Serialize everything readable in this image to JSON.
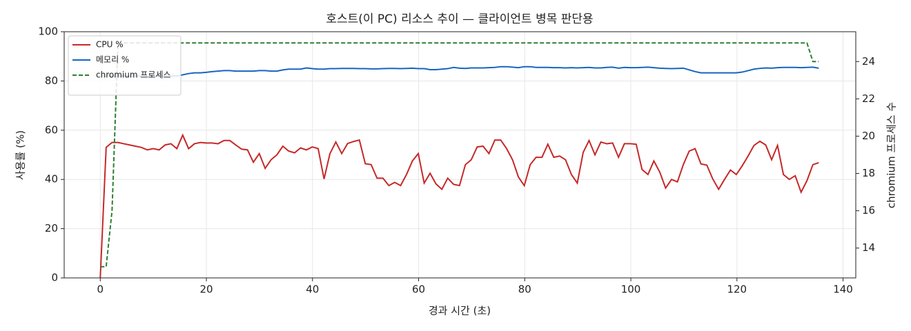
{
  "chart_data": {
    "type": "line",
    "title": "호스트(이 PC) 리소스 추이 — 클라이언트 병목 판단용",
    "xlabel": "경과 시간 (초)",
    "ylabel": "사용률 (%)",
    "y2label": "chromium 프로세스 수",
    "x": [
      0,
      1.11,
      2.22,
      3.33,
      4.44,
      5.55,
      6.66,
      7.77,
      8.88,
      9.99,
      11.1,
      12.21,
      13.32,
      14.43,
      15.54,
      16.65,
      17.76,
      18.87,
      19.98,
      21.09,
      22.2,
      23.31,
      24.42,
      25.53,
      26.64,
      27.75,
      28.86,
      29.97,
      31.08,
      32.19,
      33.3,
      34.41,
      35.52,
      36.63,
      37.74,
      38.85,
      39.96,
      41.07,
      42.18,
      43.29,
      44.4,
      45.51,
      46.62,
      47.73,
      48.84,
      49.95,
      51.06,
      52.17,
      53.28,
      54.39,
      55.5,
      56.61,
      57.72,
      58.83,
      59.94,
      61.05,
      62.16,
      63.27,
      64.38,
      65.49,
      66.6,
      67.71,
      68.82,
      69.93,
      71.04,
      72.15,
      73.26,
      74.37,
      75.48,
      76.59,
      77.7,
      78.81,
      79.92,
      81.03,
      82.14,
      83.25,
      84.36,
      85.47,
      86.58,
      87.69,
      88.8,
      89.91,
      91.02,
      92.13,
      93.24,
      94.35,
      95.46,
      96.57,
      97.68,
      98.79,
      99.9,
      101.01,
      102.12,
      103.23,
      104.34,
      105.45,
      106.56,
      107.67,
      108.78,
      109.89,
      111,
      112.11,
      113.22,
      114.33,
      115.44,
      116.55,
      117.66,
      118.77,
      119.88,
      120.99,
      122.1,
      123.21,
      124.32,
      125.43,
      126.54,
      127.65,
      128.76,
      129.87,
      130.98,
      132.09,
      133.2,
      134.31,
      135.42
    ],
    "series": [
      {
        "name": "CPU %",
        "color": "#c62828",
        "dash": false,
        "values": [
          0,
          53,
          55,
          55,
          54.5,
          54,
          53.5,
          53,
          52,
          52.5,
          52,
          54,
          54.5,
          52.5,
          58,
          52.5,
          54.5,
          55,
          54.8,
          54.8,
          54.5,
          55.8,
          55.8,
          54,
          52.3,
          52,
          47,
          50.5,
          44.5,
          48,
          50,
          53.5,
          51.5,
          50.8,
          52.8,
          52,
          53.2,
          52.5,
          40.2,
          50.5,
          55.2,
          50.5,
          54.6,
          55.4,
          56,
          46.4,
          46,
          40.5,
          40.5,
          37.5,
          38.8,
          37.5,
          42,
          47.5,
          50.5,
          38.5,
          42.5,
          38.2,
          36,
          40.5,
          38,
          37.5,
          46,
          48,
          53.2,
          53.5,
          50.5,
          56,
          56,
          52.5,
          48,
          41,
          37.5,
          46,
          49,
          49,
          54.3,
          49,
          49.5,
          48,
          42,
          38.5,
          51,
          55.8,
          50,
          55.2,
          54.5,
          54.8,
          49,
          54.5,
          54.5,
          54.3,
          44,
          42,
          47.5,
          43,
          36.5,
          40,
          39,
          46,
          51.5,
          52.5,
          46.3,
          45.8,
          40.2,
          36,
          40,
          43.8,
          42,
          45.5,
          49.5,
          53.8,
          55.5,
          54,
          48,
          53.8,
          42,
          40,
          41.5,
          34.8,
          39.5,
          46,
          46.8
        ]
      },
      {
        "name": "메모리 %",
        "color": "#1565c0",
        "dash": false,
        "values": [
          82,
          82,
          82,
          82,
          82,
          82,
          82,
          82,
          82,
          82,
          82,
          82,
          82,
          82,
          82.5,
          83,
          83.3,
          83.3,
          83.5,
          83.8,
          84,
          84.2,
          84.2,
          84,
          84,
          84,
          84,
          84.2,
          84.2,
          84,
          84,
          84.5,
          84.8,
          84.8,
          84.8,
          85.3,
          85,
          84.8,
          84.8,
          85,
          85,
          85.1,
          85.1,
          85.1,
          85,
          85,
          84.9,
          84.9,
          85,
          85.1,
          85.1,
          85,
          85.1,
          85.2,
          85,
          85,
          84.6,
          84.6,
          84.8,
          85,
          85.5,
          85.2,
          85.1,
          85.3,
          85.3,
          85.3,
          85.4,
          85.5,
          85.8,
          85.8,
          85.6,
          85.4,
          85.8,
          85.8,
          85.5,
          85.5,
          85.5,
          85.4,
          85.4,
          85.3,
          85.4,
          85.3,
          85.4,
          85.5,
          85.3,
          85.3,
          85.5,
          85.6,
          85.2,
          85.5,
          85.4,
          85.4,
          85.5,
          85.6,
          85.4,
          85.2,
          85.1,
          85,
          85.1,
          85.2,
          84.5,
          83.8,
          83.3,
          83.3,
          83.3,
          83.3,
          83.3,
          83.3,
          83.3,
          83.6,
          84.2,
          84.8,
          85.1,
          85.3,
          85.2,
          85.4,
          85.5,
          85.5,
          85.5,
          85.4,
          85.5,
          85.6,
          85.2
        ]
      },
      {
        "name": "chromium 프로세스",
        "color": "#2e7d32",
        "dash": true,
        "axis": "y2",
        "values": [
          13,
          13,
          16,
          25,
          25,
          25,
          25,
          25,
          25,
          25,
          25,
          25,
          25,
          25,
          25,
          25,
          25,
          25,
          25,
          25,
          25,
          25,
          25,
          25,
          25,
          25,
          25,
          25,
          25,
          25,
          25,
          25,
          25,
          25,
          25,
          25,
          25,
          25,
          25,
          25,
          25,
          25,
          25,
          25,
          25,
          25,
          25,
          25,
          25,
          25,
          25,
          25,
          25,
          25,
          25,
          25,
          25,
          25,
          25,
          25,
          25,
          25,
          25,
          25,
          25,
          25,
          25,
          25,
          25,
          25,
          25,
          25,
          25,
          25,
          25,
          25,
          25,
          25,
          25,
          25,
          25,
          25,
          25,
          25,
          25,
          25,
          25,
          25,
          25,
          25,
          25,
          25,
          25,
          25,
          25,
          25,
          25,
          25,
          25,
          25,
          25,
          25,
          25,
          25,
          25,
          25,
          25,
          25,
          25,
          25,
          25,
          25,
          25,
          25,
          25,
          25,
          25,
          25,
          25,
          25,
          25,
          24,
          24
        ]
      }
    ],
    "xlim": [
      -6.8,
      142.4
    ],
    "xticks": [
      0,
      20,
      40,
      60,
      80,
      100,
      120,
      140
    ],
    "ylim": [
      0,
      100
    ],
    "yticks": [
      0,
      20,
      40,
      60,
      80,
      100
    ],
    "y2lim": [
      12.4,
      25.6
    ],
    "y2ticks": [
      14,
      16,
      18,
      20,
      22,
      24
    ],
    "grid": true,
    "legend": "upper left"
  }
}
